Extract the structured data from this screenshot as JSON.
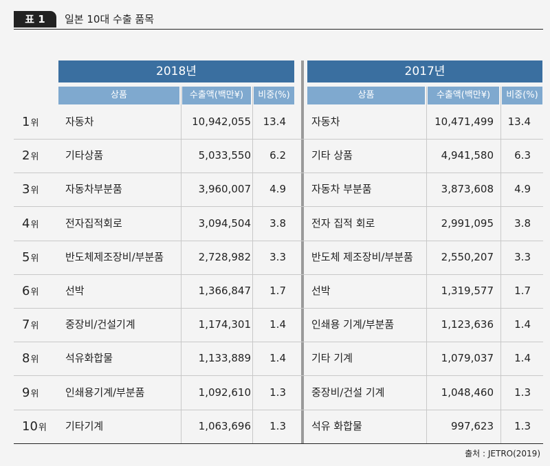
{
  "title": {
    "badge": "표 1",
    "text": "일본 10대 수출 품목"
  },
  "years": {
    "left": "2018년",
    "right": "2017년"
  },
  "columns": {
    "product": "상품",
    "amount": "수출액(백만¥)",
    "share": "비중(%)"
  },
  "rank_suffix": "위",
  "rows": [
    {
      "rank": "1",
      "p18": "자동차",
      "a18": "10,942,055",
      "s18": "13.4",
      "p17": "자동차",
      "a17": "10,471,499",
      "s17": "13.4"
    },
    {
      "rank": "2",
      "p18": "기타상품",
      "a18": "5,033,550",
      "s18": "6.2",
      "p17": "기타 상품",
      "a17": "4,941,580",
      "s17": "6.3"
    },
    {
      "rank": "3",
      "p18": "자동차부분품",
      "a18": "3,960,007",
      "s18": "4.9",
      "p17": "자동차 부분품",
      "a17": "3,873,608",
      "s17": "4.9"
    },
    {
      "rank": "4",
      "p18": "전자집적회로",
      "a18": "3,094,504",
      "s18": "3.8",
      "p17": "전자 집적 회로",
      "a17": "2,991,095",
      "s17": "3.8"
    },
    {
      "rank": "5",
      "p18": "반도체제조장비/부분품",
      "a18": "2,728,982",
      "s18": "3.3",
      "p17": "반도체 제조장비/부분품",
      "a17": "2,550,207",
      "s17": "3.3"
    },
    {
      "rank": "6",
      "p18": "선박",
      "a18": "1,366,847",
      "s18": "1.7",
      "p17": "선박",
      "a17": "1,319,577",
      "s17": "1.7"
    },
    {
      "rank": "7",
      "p18": "중장비/건설기계",
      "a18": "1,174,301",
      "s18": "1.4",
      "p17": "인쇄용 기계/부분품",
      "a17": "1,123,636",
      "s17": "1.4"
    },
    {
      "rank": "8",
      "p18": "석유화합물",
      "a18": "1,133,889",
      "s18": "1.4",
      "p17": "기타 기계",
      "a17": "1,079,037",
      "s17": "1.4"
    },
    {
      "rank": "9",
      "p18": "인쇄용기계/부분품",
      "a18": "1,092,610",
      "s18": "1.3",
      "p17": "중장비/건설 기계",
      "a17": "1,048,460",
      "s17": "1.3"
    },
    {
      "rank": "10",
      "p18": "기타기계",
      "a18": "1,063,696",
      "s18": "1.3",
      "p17": "석유 화합물",
      "a17": "997,623",
      "s17": "1.3"
    }
  ],
  "source": "출처 : JETRO(2019)",
  "colors": {
    "year_header": "#3a6fa0",
    "col_header": "#7fa9cf",
    "badge": "#222222",
    "background": "#f4f4f4"
  }
}
